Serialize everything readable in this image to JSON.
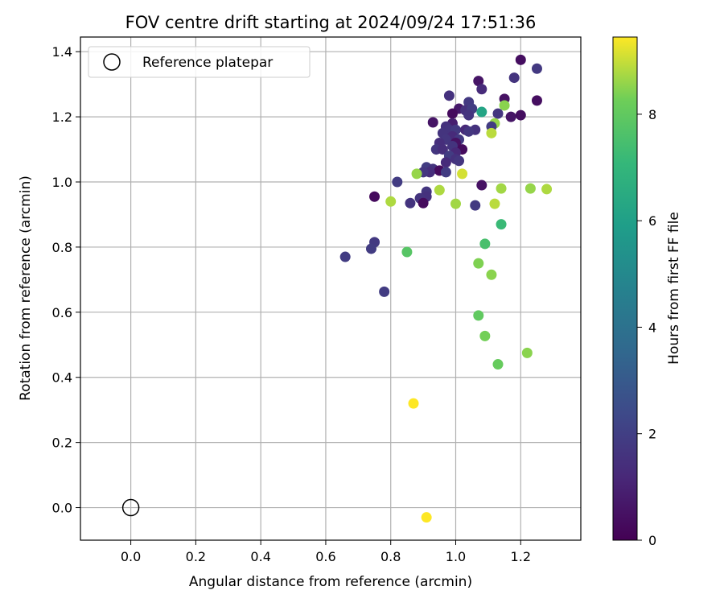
{
  "chart_data": {
    "type": "scatter",
    "title": "FOV centre drift starting at 2024/09/24 17:51:36",
    "xlabel": "Angular distance from reference (arcmin)",
    "ylabel": "Rotation from reference (arcmin)",
    "xlim": [
      -0.155,
      1.385
    ],
    "ylim": [
      -0.1,
      1.445
    ],
    "xticks": [
      "0.0",
      "0.2",
      "0.4",
      "0.6",
      "0.8",
      "1.0",
      "1.2"
    ],
    "yticks": [
      "0.0",
      "0.2",
      "0.4",
      "0.6",
      "0.8",
      "1.0",
      "1.2",
      "1.4"
    ],
    "grid": true,
    "legend": {
      "placement": "top-left",
      "entries": [
        "Reference platepar"
      ]
    },
    "reference_point": {
      "x": 0.0,
      "y": 0.0
    },
    "colorbar": {
      "label": "Hours from first FF file",
      "colormap": "viridis",
      "range": [
        0,
        9.45
      ],
      "ticks": [
        "0",
        "2",
        "4",
        "6",
        "8"
      ]
    },
    "points": [
      {
        "x": 1.2,
        "y": 1.375,
        "c": 0.4
      },
      {
        "x": 1.25,
        "y": 1.348,
        "c": 1.8
      },
      {
        "x": 1.18,
        "y": 1.32,
        "c": 1.6
      },
      {
        "x": 1.07,
        "y": 1.31,
        "c": 0.6
      },
      {
        "x": 1.08,
        "y": 1.285,
        "c": 1.3
      },
      {
        "x": 0.98,
        "y": 1.265,
        "c": 1.5
      },
      {
        "x": 1.15,
        "y": 1.255,
        "c": 0.5
      },
      {
        "x": 1.25,
        "y": 1.25,
        "c": 0.4
      },
      {
        "x": 1.04,
        "y": 1.245,
        "c": 1.8
      },
      {
        "x": 1.15,
        "y": 1.235,
        "c": 8.5
      },
      {
        "x": 1.01,
        "y": 1.225,
        "c": 0.7
      },
      {
        "x": 1.03,
        "y": 1.22,
        "c": 1.5
      },
      {
        "x": 1.05,
        "y": 1.225,
        "c": 1.9
      },
      {
        "x": 1.08,
        "y": 1.215,
        "c": 6.2
      },
      {
        "x": 0.99,
        "y": 1.21,
        "c": 0.3
      },
      {
        "x": 1.13,
        "y": 1.21,
        "c": 1.7
      },
      {
        "x": 1.17,
        "y": 1.2,
        "c": 0.6
      },
      {
        "x": 1.2,
        "y": 1.205,
        "c": 0.4
      },
      {
        "x": 1.04,
        "y": 1.205,
        "c": 1.6
      },
      {
        "x": 0.93,
        "y": 1.183,
        "c": 0.6
      },
      {
        "x": 0.99,
        "y": 1.18,
        "c": 0.9
      },
      {
        "x": 1.12,
        "y": 1.18,
        "c": 8.6
      },
      {
        "x": 1.11,
        "y": 1.17,
        "c": 1.9
      },
      {
        "x": 0.97,
        "y": 1.17,
        "c": 1.5
      },
      {
        "x": 0.98,
        "y": 1.16,
        "c": 1.6
      },
      {
        "x": 1.0,
        "y": 1.16,
        "c": 1.8
      },
      {
        "x": 1.03,
        "y": 1.16,
        "c": 1.2
      },
      {
        "x": 1.06,
        "y": 1.16,
        "c": 1.5
      },
      {
        "x": 0.96,
        "y": 1.15,
        "c": 1.6
      },
      {
        "x": 1.04,
        "y": 1.155,
        "c": 1.7
      },
      {
        "x": 1.11,
        "y": 1.15,
        "c": 8.9
      },
      {
        "x": 0.99,
        "y": 1.14,
        "c": 1.3
      },
      {
        "x": 1.01,
        "y": 1.13,
        "c": 1.8
      },
      {
        "x": 0.97,
        "y": 1.13,
        "c": 1.7
      },
      {
        "x": 1.0,
        "y": 1.12,
        "c": 0.5
      },
      {
        "x": 0.95,
        "y": 1.12,
        "c": 1.4
      },
      {
        "x": 0.99,
        "y": 1.11,
        "c": 1.6
      },
      {
        "x": 1.02,
        "y": 1.1,
        "c": 0.3
      },
      {
        "x": 0.94,
        "y": 1.1,
        "c": 1.7
      },
      {
        "x": 0.96,
        "y": 1.1,
        "c": 1.4
      },
      {
        "x": 1.0,
        "y": 1.09,
        "c": 1.2
      },
      {
        "x": 0.98,
        "y": 1.08,
        "c": 1.9
      },
      {
        "x": 1.0,
        "y": 1.07,
        "c": 1.5
      },
      {
        "x": 1.01,
        "y": 1.065,
        "c": 1.7
      },
      {
        "x": 0.97,
        "y": 1.06,
        "c": 1.3
      },
      {
        "x": 0.91,
        "y": 1.045,
        "c": 1.9
      },
      {
        "x": 0.93,
        "y": 1.04,
        "c": 1.6
      },
      {
        "x": 0.95,
        "y": 1.035,
        "c": 0.3
      },
      {
        "x": 0.92,
        "y": 1.03,
        "c": 1.4
      },
      {
        "x": 0.9,
        "y": 1.03,
        "c": 1.7
      },
      {
        "x": 0.97,
        "y": 1.03,
        "c": 1.9
      },
      {
        "x": 0.88,
        "y": 1.025,
        "c": 8.6
      },
      {
        "x": 1.02,
        "y": 1.025,
        "c": 9.1
      },
      {
        "x": 0.82,
        "y": 1.0,
        "c": 1.9
      },
      {
        "x": 1.08,
        "y": 0.99,
        "c": 0.5
      },
      {
        "x": 0.95,
        "y": 0.975,
        "c": 8.8
      },
      {
        "x": 1.14,
        "y": 0.98,
        "c": 8.7
      },
      {
        "x": 1.23,
        "y": 0.98,
        "c": 8.6
      },
      {
        "x": 1.28,
        "y": 0.978,
        "c": 8.8
      },
      {
        "x": 0.91,
        "y": 0.97,
        "c": 1.7
      },
      {
        "x": 0.75,
        "y": 0.955,
        "c": 0.3
      },
      {
        "x": 0.91,
        "y": 0.955,
        "c": 1.5
      },
      {
        "x": 0.89,
        "y": 0.95,
        "c": 1.6
      },
      {
        "x": 0.8,
        "y": 0.94,
        "c": 8.8
      },
      {
        "x": 0.86,
        "y": 0.935,
        "c": 1.6
      },
      {
        "x": 0.9,
        "y": 0.935,
        "c": 0.3
      },
      {
        "x": 1.0,
        "y": 0.933,
        "c": 8.7
      },
      {
        "x": 1.12,
        "y": 0.933,
        "c": 8.9
      },
      {
        "x": 1.06,
        "y": 0.928,
        "c": 1.8
      },
      {
        "x": 1.14,
        "y": 0.87,
        "c": 7.2
      },
      {
        "x": 0.75,
        "y": 0.815,
        "c": 1.8
      },
      {
        "x": 1.09,
        "y": 0.81,
        "c": 7.5
      },
      {
        "x": 0.74,
        "y": 0.795,
        "c": 1.9
      },
      {
        "x": 0.85,
        "y": 0.785,
        "c": 7.8
      },
      {
        "x": 0.66,
        "y": 0.77,
        "c": 1.9
      },
      {
        "x": 1.07,
        "y": 0.75,
        "c": 8.4
      },
      {
        "x": 1.11,
        "y": 0.715,
        "c": 8.5
      },
      {
        "x": 0.78,
        "y": 0.663,
        "c": 1.9
      },
      {
        "x": 1.07,
        "y": 0.59,
        "c": 8.0
      },
      {
        "x": 1.09,
        "y": 0.527,
        "c": 8.3
      },
      {
        "x": 1.22,
        "y": 0.475,
        "c": 8.5
      },
      {
        "x": 1.13,
        "y": 0.44,
        "c": 8.1
      },
      {
        "x": 0.87,
        "y": 0.32,
        "c": 9.45
      },
      {
        "x": 0.91,
        "y": -0.03,
        "c": 9.45
      }
    ]
  }
}
